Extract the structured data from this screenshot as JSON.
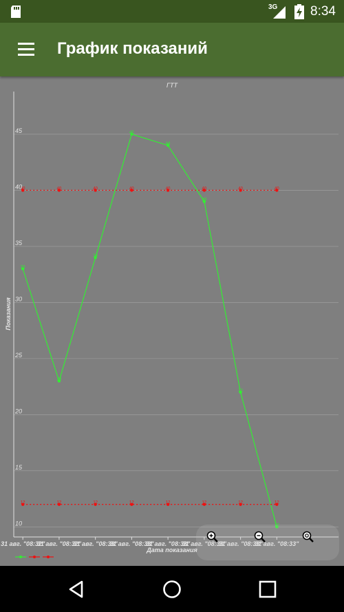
{
  "status_bar": {
    "network": "3G",
    "time": "8:34",
    "icons": [
      "sd-card-icon",
      "signal-icon",
      "battery-charging-icon"
    ]
  },
  "app_bar": {
    "title": "График показаний",
    "menu_icon": "hamburger-menu-icon"
  },
  "colors": {
    "app_bar": "#4b6d30",
    "status_bar": "#39551f",
    "chart_bg": "#7f7f7f",
    "series_value": "#33ee33",
    "series_limits": "#ee1111"
  },
  "zoom_controls": [
    {
      "name": "zoom-in-icon"
    },
    {
      "name": "zoom-out-icon"
    },
    {
      "name": "zoom-reset-icon"
    }
  ],
  "chart_data": {
    "type": "line",
    "title": "ГТТ",
    "xlabel": "Дата показания",
    "ylabel": "Показания",
    "x_tick_labels": [
      "31 авг. \"08:32\"",
      "31 авг. \"08:32\"",
      "31 авг. \"08:33\"",
      "31 авг. \"08:33\"",
      "31 авг. \"08:33\"",
      "31 авг. \"08:33\"",
      "31 авг. \"08:33\"",
      "31 авг. \"08:33\""
    ],
    "x": [
      1,
      2,
      3,
      4,
      5,
      6,
      7,
      8
    ],
    "xlim": [
      0.75,
      9.7
    ],
    "ylim": [
      9.1,
      48.8
    ],
    "yticks": [
      10,
      15,
      20,
      25,
      30,
      35,
      40,
      45
    ],
    "grid": true,
    "series": [
      {
        "name": "",
        "color": "#33ee33",
        "dash": false,
        "values": [
          33,
          23,
          34,
          45,
          44,
          39,
          22,
          10
        ]
      },
      {
        "name": "",
        "color": "#ee1111",
        "dash": true,
        "values": [
          40,
          40,
          40,
          40,
          40,
          40,
          40,
          40
        ]
      },
      {
        "name": "",
        "color": "#ee1111",
        "dash": true,
        "values": [
          12,
          12,
          12,
          12,
          12,
          12,
          12,
          12
        ]
      }
    ],
    "legend_position": "bottom-left"
  },
  "nav_bar": {
    "icons": [
      "back-icon",
      "home-icon",
      "recents-icon"
    ]
  }
}
